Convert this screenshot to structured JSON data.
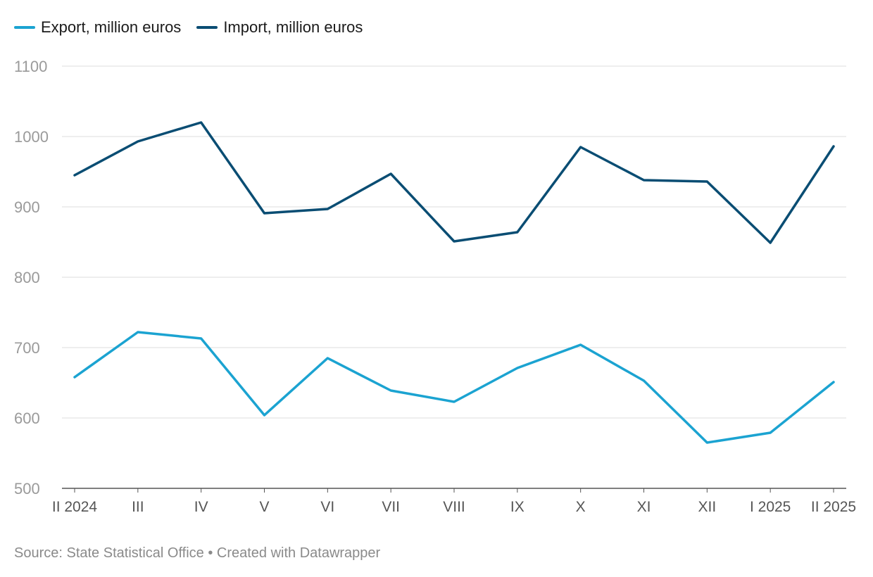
{
  "chart_data": {
    "type": "line",
    "categories": [
      "II 2024",
      "III",
      "IV",
      "V",
      "VI",
      "VII",
      "VIII",
      "IX",
      "X",
      "XI",
      "XII",
      "I 2025",
      "II 2025"
    ],
    "series": [
      {
        "name": "Export, million euros",
        "color": "#1ba3d1",
        "values": [
          658,
          722,
          713,
          604,
          685,
          639,
          623,
          671,
          704,
          653,
          565,
          579,
          651
        ]
      },
      {
        "name": "Import, million euros",
        "color": "#0a4d73",
        "values": [
          945,
          993,
          1020,
          891,
          897,
          947,
          851,
          864,
          985,
          938,
          936,
          849,
          986
        ]
      }
    ],
    "ylim": [
      500,
      1100
    ],
    "yticks": [
      "500",
      "600",
      "700",
      "800",
      "900",
      "1000",
      "1100"
    ],
    "grid": true,
    "legend_position": "top-left"
  },
  "footer": {
    "text": "Source: State Statistical Office • Created with Datawrapper"
  }
}
